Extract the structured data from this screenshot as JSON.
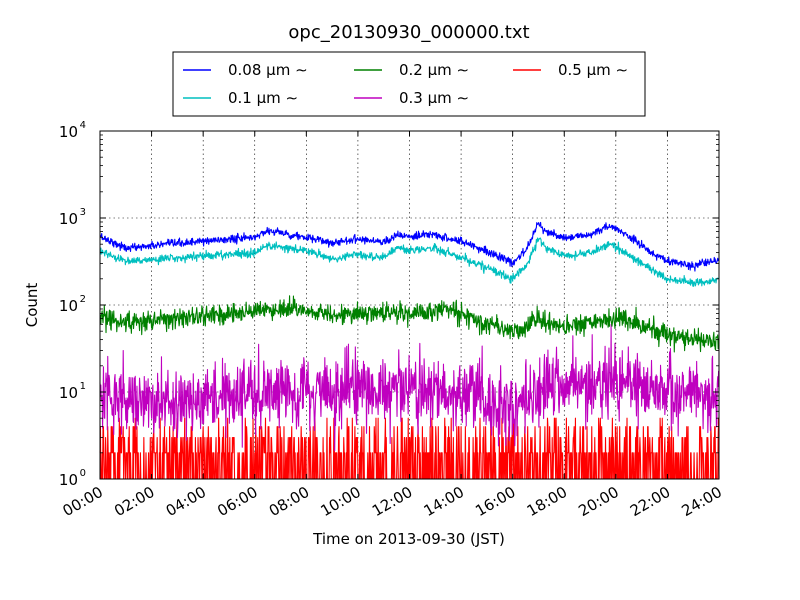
{
  "chart_data": {
    "type": "line",
    "title": "opc_20130930_000000.txt",
    "xlabel": "Time on 2013-09-30 (JST)",
    "ylabel": "Count",
    "xlim": [
      "00:00",
      "24:00"
    ],
    "ylim": [
      1,
      10000
    ],
    "y_scale": "log",
    "grid": true,
    "legend_position": "top, above plot",
    "x_ticks": [
      "00:00",
      "02:00",
      "04:00",
      "06:00",
      "08:00",
      "10:00",
      "12:00",
      "14:00",
      "16:00",
      "18:00",
      "20:00",
      "22:00",
      "24:00"
    ],
    "y_ticks": [
      {
        "value": 1,
        "base": "10",
        "exp": "0"
      },
      {
        "value": 10,
        "base": "10",
        "exp": "1"
      },
      {
        "value": 100,
        "base": "10",
        "exp": "2"
      },
      {
        "value": 1000,
        "base": "10",
        "exp": "3"
      },
      {
        "value": 10000,
        "base": "10",
        "exp": "4"
      }
    ],
    "series": [
      {
        "name": "0.08 μm ∼",
        "color": "#0000ff",
        "x_hours": [
          0,
          1,
          2,
          3,
          4,
          5,
          6,
          6.5,
          7,
          8,
          9,
          10,
          11,
          11.5,
          12,
          13,
          13.5,
          14,
          15,
          16,
          16.5,
          17,
          17.3,
          18,
          19,
          19.8,
          20.5,
          21.5,
          22,
          23,
          24
        ],
        "values": [
          620,
          450,
          480,
          510,
          540,
          570,
          600,
          720,
          680,
          590,
          520,
          580,
          530,
          640,
          600,
          650,
          580,
          540,
          420,
          300,
          420,
          900,
          700,
          580,
          650,
          800,
          620,
          380,
          320,
          280,
          330
        ],
        "noise": 0.05
      },
      {
        "name": "0.1 μm ∼",
        "color": "#00bfbf",
        "x_hours": [
          0,
          1,
          2,
          3,
          4,
          5,
          6,
          6.5,
          7,
          8,
          9,
          10,
          11,
          11.5,
          12,
          13,
          13.5,
          14,
          15,
          16,
          16.5,
          17,
          17.3,
          18,
          19,
          19.8,
          20.5,
          21.5,
          22,
          23,
          24
        ],
        "values": [
          420,
          320,
          330,
          350,
          370,
          380,
          400,
          480,
          460,
          420,
          340,
          380,
          350,
          460,
          420,
          450,
          400,
          350,
          270,
          200,
          280,
          580,
          460,
          360,
          400,
          500,
          380,
          240,
          200,
          180,
          190
        ],
        "noise": 0.05
      },
      {
        "name": "0.2 μm ∼",
        "color": "#008000",
        "x_hours": [
          0,
          1,
          2,
          3,
          4,
          5,
          6,
          7,
          8,
          9,
          10,
          11,
          12,
          13,
          13.5,
          14,
          15,
          16,
          16.5,
          17,
          17.3,
          18,
          19,
          20,
          21,
          22,
          23,
          24
        ],
        "values": [
          72,
          62,
          66,
          70,
          75,
          80,
          85,
          90,
          85,
          80,
          78,
          82,
          80,
          85,
          90,
          80,
          65,
          48,
          55,
          75,
          62,
          55,
          62,
          70,
          58,
          45,
          40,
          38
        ],
        "noise": 0.13
      },
      {
        "name": "0.3 μm ∼",
        "color": "#bf00bf",
        "x_hours": [
          0,
          2,
          4,
          6,
          8,
          10,
          12,
          14,
          16,
          17,
          18,
          20,
          22,
          24
        ],
        "values": [
          9,
          8,
          8.5,
          10,
          10,
          10,
          10.5,
          10,
          7,
          11,
          10,
          13,
          10,
          9
        ],
        "noise": 0.45
      },
      {
        "name": "0.5 μm ∼",
        "color": "#ff0000",
        "x_hours": [
          0,
          24
        ],
        "values": [
          1.8,
          1.8
        ],
        "noise": 0
      }
    ]
  }
}
